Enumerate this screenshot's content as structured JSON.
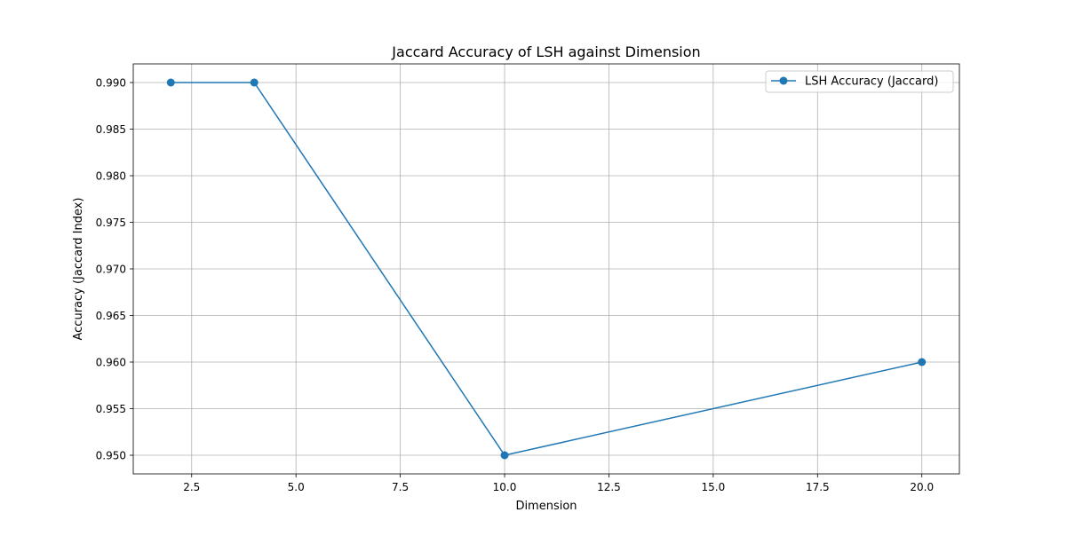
{
  "chart_data": {
    "type": "line",
    "title": "Jaccard Accuracy of LSH against Dimension",
    "xlabel": "Dimension",
    "ylabel": "Accuracy (Jaccard Index)",
    "xlim": [
      1.1,
      20.9
    ],
    "ylim": [
      0.948,
      0.992
    ],
    "xticks": [
      2.5,
      5.0,
      7.5,
      10.0,
      12.5,
      15.0,
      17.5,
      20.0
    ],
    "xtick_labels": [
      "2.5",
      "5.0",
      "7.5",
      "10.0",
      "12.5",
      "15.0",
      "17.5",
      "20.0"
    ],
    "yticks": [
      0.95,
      0.955,
      0.96,
      0.965,
      0.97,
      0.975,
      0.98,
      0.985,
      0.99
    ],
    "ytick_labels": [
      "0.950",
      "0.955",
      "0.960",
      "0.965",
      "0.970",
      "0.975",
      "0.980",
      "0.985",
      "0.990"
    ],
    "grid": true,
    "legend_position": "top-right",
    "series": [
      {
        "name": "LSH Accuracy (Jaccard)",
        "color": "#1f77b4",
        "marker": "circle",
        "x": [
          2,
          4,
          10,
          20
        ],
        "y": [
          0.99,
          0.99,
          0.95,
          0.96
        ]
      }
    ]
  }
}
